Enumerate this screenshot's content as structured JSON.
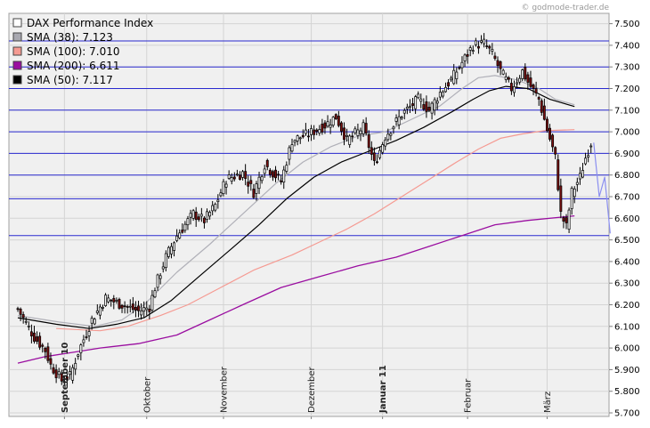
{
  "watermark": "© godmode-trader.de",
  "chart_data": {
    "type": "candlestick",
    "ylim": [
      5700,
      7500
    ],
    "yticks": [
      5700,
      5800,
      5900,
      6000,
      6100,
      6200,
      6300,
      6400,
      6500,
      6600,
      6700,
      6800,
      6900,
      7000,
      7100,
      7200,
      7300,
      7400,
      7500
    ],
    "ytick_labels": [
      "5.700",
      "5.800",
      "5.900",
      "6.000",
      "6.100",
      "6.200",
      "6.300",
      "6.400",
      "6.500",
      "6.600",
      "6.700",
      "6.800",
      "6.900",
      "7.000",
      "7.100",
      "7.200",
      "7.300",
      "7.400",
      "7.500"
    ],
    "hlines": [
      6520,
      6690,
      6800,
      6900,
      7000,
      7100,
      7200,
      7300,
      7420
    ],
    "x_labels": [
      {
        "text": "September 10",
        "bold": true
      },
      {
        "text": "Oktober",
        "bold": false
      },
      {
        "text": "November",
        "bold": false
      },
      {
        "text": "Dezember",
        "bold": false
      },
      {
        "text": "Januar 11",
        "bold": true
      },
      {
        "text": "Februar",
        "bold": false
      },
      {
        "text": "März",
        "bold": false
      }
    ],
    "legend": [
      {
        "label": "DAX Performance Index",
        "color": "#ffffff"
      },
      {
        "label": "SMA (38): 7.123",
        "color": "#a8a8b0"
      },
      {
        "label": "SMA (100): 7.010",
        "color": "#f59a92"
      },
      {
        "label": "SMA (200): 6.611",
        "color": "#9a0ea0"
      },
      {
        "label": "SMA (50): 7.117",
        "color": "#000000"
      }
    ],
    "anchors": [
      [
        0,
        6180
      ],
      [
        6,
        6050
      ],
      [
        10,
        5990
      ],
      [
        12,
        5920
      ],
      [
        16,
        5850
      ],
      [
        19,
        5870
      ],
      [
        22,
        5980
      ],
      [
        27,
        6130
      ],
      [
        32,
        6230
      ],
      [
        38,
        6200
      ],
      [
        44,
        6170
      ],
      [
        48,
        6190
      ],
      [
        50,
        6280
      ],
      [
        54,
        6420
      ],
      [
        58,
        6520
      ],
      [
        64,
        6620
      ],
      [
        68,
        6590
      ],
      [
        72,
        6660
      ],
      [
        76,
        6780
      ],
      [
        82,
        6810
      ],
      [
        86,
        6720
      ],
      [
        90,
        6850
      ],
      [
        96,
        6770
      ],
      [
        100,
        6960
      ],
      [
        106,
        6990
      ],
      [
        112,
        7030
      ],
      [
        116,
        7070
      ],
      [
        120,
        6960
      ],
      [
        126,
        7020
      ],
      [
        130,
        6850
      ],
      [
        134,
        6980
      ],
      [
        140,
        7080
      ],
      [
        146,
        7150
      ],
      [
        150,
        7100
      ],
      [
        154,
        7180
      ],
      [
        158,
        7240
      ],
      [
        162,
        7320
      ],
      [
        166,
        7400
      ],
      [
        170,
        7410
      ],
      [
        173,
        7360
      ],
      [
        176,
        7280
      ],
      [
        180,
        7200
      ],
      [
        184,
        7280
      ],
      [
        186,
        7230
      ],
      [
        190,
        7150
      ],
      [
        193,
        7010
      ],
      [
        196,
        6880
      ],
      [
        198,
        6620
      ],
      [
        200,
        6560
      ],
      [
        202,
        6720
      ],
      [
        205,
        6790
      ],
      [
        207,
        6880
      ],
      [
        209,
        6950
      ]
    ],
    "sma38": {
      "color": "#b0b0b8",
      "points": [
        [
          0,
          6150
        ],
        [
          15,
          6120
        ],
        [
          28,
          6100
        ],
        [
          38,
          6130
        ],
        [
          46,
          6200
        ],
        [
          58,
          6350
        ],
        [
          70,
          6480
        ],
        [
          82,
          6620
        ],
        [
          94,
          6760
        ],
        [
          104,
          6860
        ],
        [
          114,
          6930
        ],
        [
          124,
          6980
        ],
        [
          134,
          7000
        ],
        [
          144,
          7060
        ],
        [
          154,
          7120
        ],
        [
          162,
          7200
        ],
        [
          168,
          7250
        ],
        [
          174,
          7260
        ],
        [
          182,
          7240
        ],
        [
          190,
          7200
        ],
        [
          196,
          7150
        ],
        [
          203,
          7125
        ]
      ]
    },
    "sma50": {
      "color": "#000000",
      "points": [
        [
          0,
          6140
        ],
        [
          14,
          6110
        ],
        [
          26,
          6090
        ],
        [
          36,
          6110
        ],
        [
          46,
          6140
        ],
        [
          56,
          6220
        ],
        [
          66,
          6330
        ],
        [
          78,
          6460
        ],
        [
          88,
          6570
        ],
        [
          98,
          6690
        ],
        [
          108,
          6790
        ],
        [
          118,
          6860
        ],
        [
          128,
          6910
        ],
        [
          138,
          6960
        ],
        [
          148,
          7020
        ],
        [
          158,
          7090
        ],
        [
          166,
          7150
        ],
        [
          172,
          7190
        ],
        [
          178,
          7210
        ],
        [
          186,
          7200
        ],
        [
          194,
          7150
        ],
        [
          203,
          7117
        ]
      ]
    },
    "sma100": {
      "color": "#f59a92",
      "points": [
        [
          14,
          6090
        ],
        [
          30,
          6080
        ],
        [
          40,
          6100
        ],
        [
          52,
          6150
        ],
        [
          62,
          6200
        ],
        [
          74,
          6280
        ],
        [
          86,
          6360
        ],
        [
          100,
          6430
        ],
        [
          110,
          6490
        ],
        [
          120,
          6550
        ],
        [
          130,
          6620
        ],
        [
          140,
          6700
        ],
        [
          150,
          6780
        ],
        [
          160,
          6860
        ],
        [
          168,
          6920
        ],
        [
          176,
          6970
        ],
        [
          184,
          6990
        ],
        [
          192,
          7005
        ],
        [
          203,
          7010
        ]
      ]
    },
    "sma200": {
      "color": "#9a0ea0",
      "points": [
        [
          0,
          5930
        ],
        [
          10,
          5960
        ],
        [
          20,
          5980
        ],
        [
          30,
          6000
        ],
        [
          44,
          6020
        ],
        [
          58,
          6060
        ],
        [
          70,
          6130
        ],
        [
          82,
          6200
        ],
        [
          96,
          6280
        ],
        [
          110,
          6330
        ],
        [
          124,
          6380
        ],
        [
          138,
          6420
        ],
        [
          150,
          6470
        ],
        [
          162,
          6520
        ],
        [
          174,
          6570
        ],
        [
          186,
          6590
        ],
        [
          203,
          6611
        ]
      ]
    },
    "forecast": {
      "color": "#8a8ef0",
      "points": [
        [
          210,
          6950
        ],
        [
          212,
          6700
        ],
        [
          214,
          6790
        ],
        [
          216,
          6530
        ]
      ]
    }
  }
}
